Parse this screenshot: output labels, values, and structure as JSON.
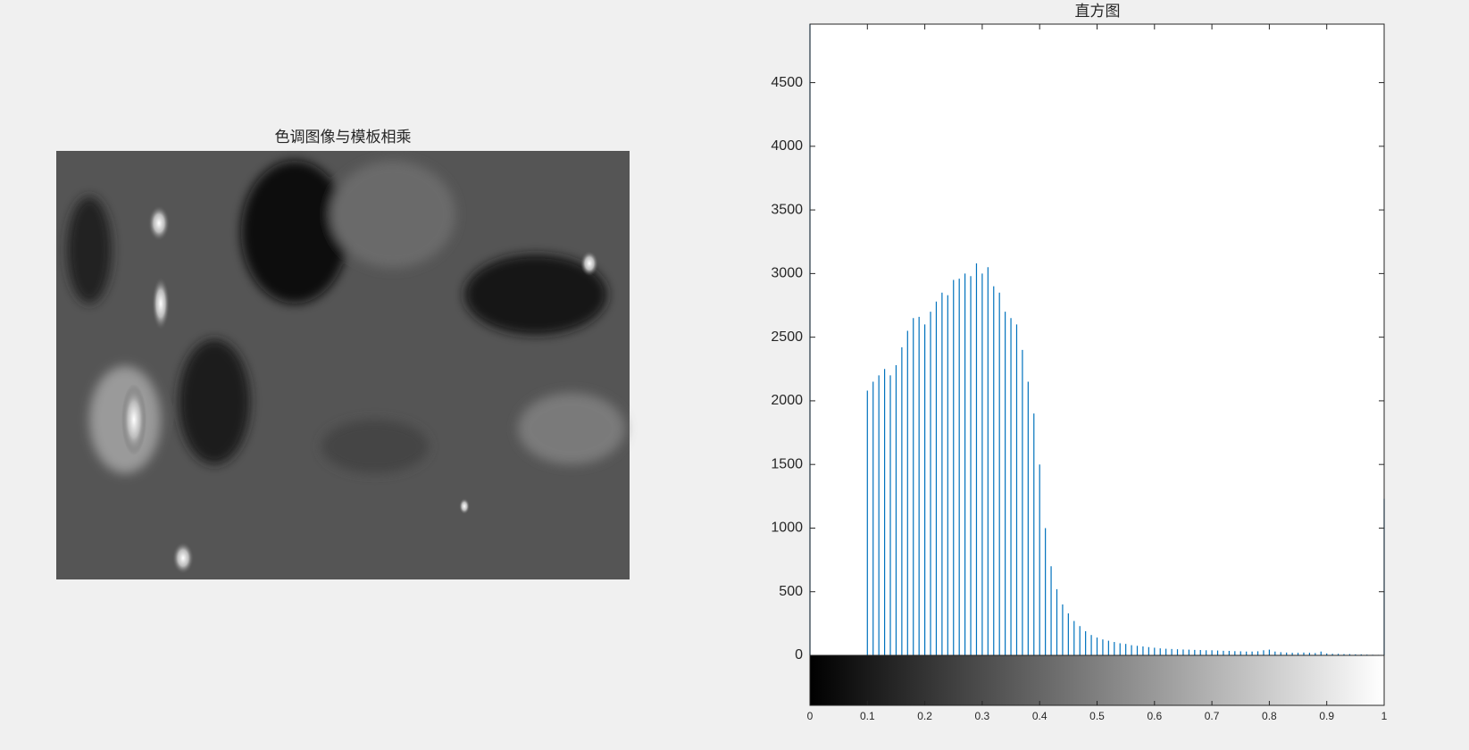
{
  "image_panel": {
    "title": "色调图像与模板相乘"
  },
  "chart_data": {
    "type": "stem",
    "title": "直方图",
    "color": "#0072bd",
    "x": [
      0,
      0.1,
      0.11,
      0.12,
      0.13,
      0.14,
      0.15,
      0.16,
      0.17,
      0.18,
      0.19,
      0.2,
      0.21,
      0.22,
      0.23,
      0.24,
      0.25,
      0.26,
      0.27,
      0.28,
      0.29,
      0.3,
      0.31,
      0.32,
      0.33,
      0.34,
      0.35,
      0.36,
      0.37,
      0.38,
      0.39,
      0.4,
      0.41,
      0.42,
      0.43,
      0.44,
      0.45,
      0.46,
      0.47,
      0.48,
      0.49,
      0.5,
      0.51,
      0.52,
      0.53,
      0.54,
      0.55,
      0.56,
      0.57,
      0.58,
      0.59,
      0.6,
      0.61,
      0.62,
      0.63,
      0.64,
      0.65,
      0.66,
      0.67,
      0.68,
      0.69,
      0.7,
      0.71,
      0.72,
      0.73,
      0.74,
      0.75,
      0.76,
      0.77,
      0.78,
      0.79,
      0.8,
      0.81,
      0.82,
      0.83,
      0.84,
      0.85,
      0.86,
      0.87,
      0.88,
      0.89,
      0.9,
      0.91,
      0.92,
      0.93,
      0.94,
      0.95,
      0.96,
      0.97,
      0.98,
      0.99,
      1.0
    ],
    "values": [
      4960,
      2080,
      2150,
      2200,
      2250,
      2200,
      2280,
      2420,
      2550,
      2650,
      2660,
      2600,
      2700,
      2780,
      2850,
      2830,
      2950,
      2960,
      3000,
      2980,
      3080,
      3000,
      3050,
      2900,
      2850,
      2700,
      2650,
      2600,
      2400,
      2150,
      1900,
      1500,
      1000,
      700,
      520,
      400,
      330,
      270,
      230,
      190,
      160,
      140,
      125,
      115,
      105,
      95,
      90,
      80,
      75,
      70,
      65,
      60,
      55,
      52,
      50,
      48,
      46,
      45,
      43,
      42,
      40,
      40,
      38,
      36,
      35,
      33,
      32,
      30,
      30,
      32,
      40,
      45,
      30,
      25,
      22,
      20,
      20,
      22,
      20,
      18,
      30,
      15,
      12,
      12,
      10,
      10,
      8,
      8,
      6,
      5,
      4,
      1230
    ],
    "xlim": [
      0,
      1
    ],
    "xticks": [
      0,
      0.1,
      0.2,
      0.3,
      0.4,
      0.5,
      0.6,
      0.7,
      0.8,
      0.9,
      1
    ],
    "ylim": [
      0,
      4960
    ],
    "yticks": [
      0,
      500,
      1000,
      1500,
      2000,
      2500,
      3000,
      3500,
      4000,
      4500
    ],
    "colorbar": true
  }
}
